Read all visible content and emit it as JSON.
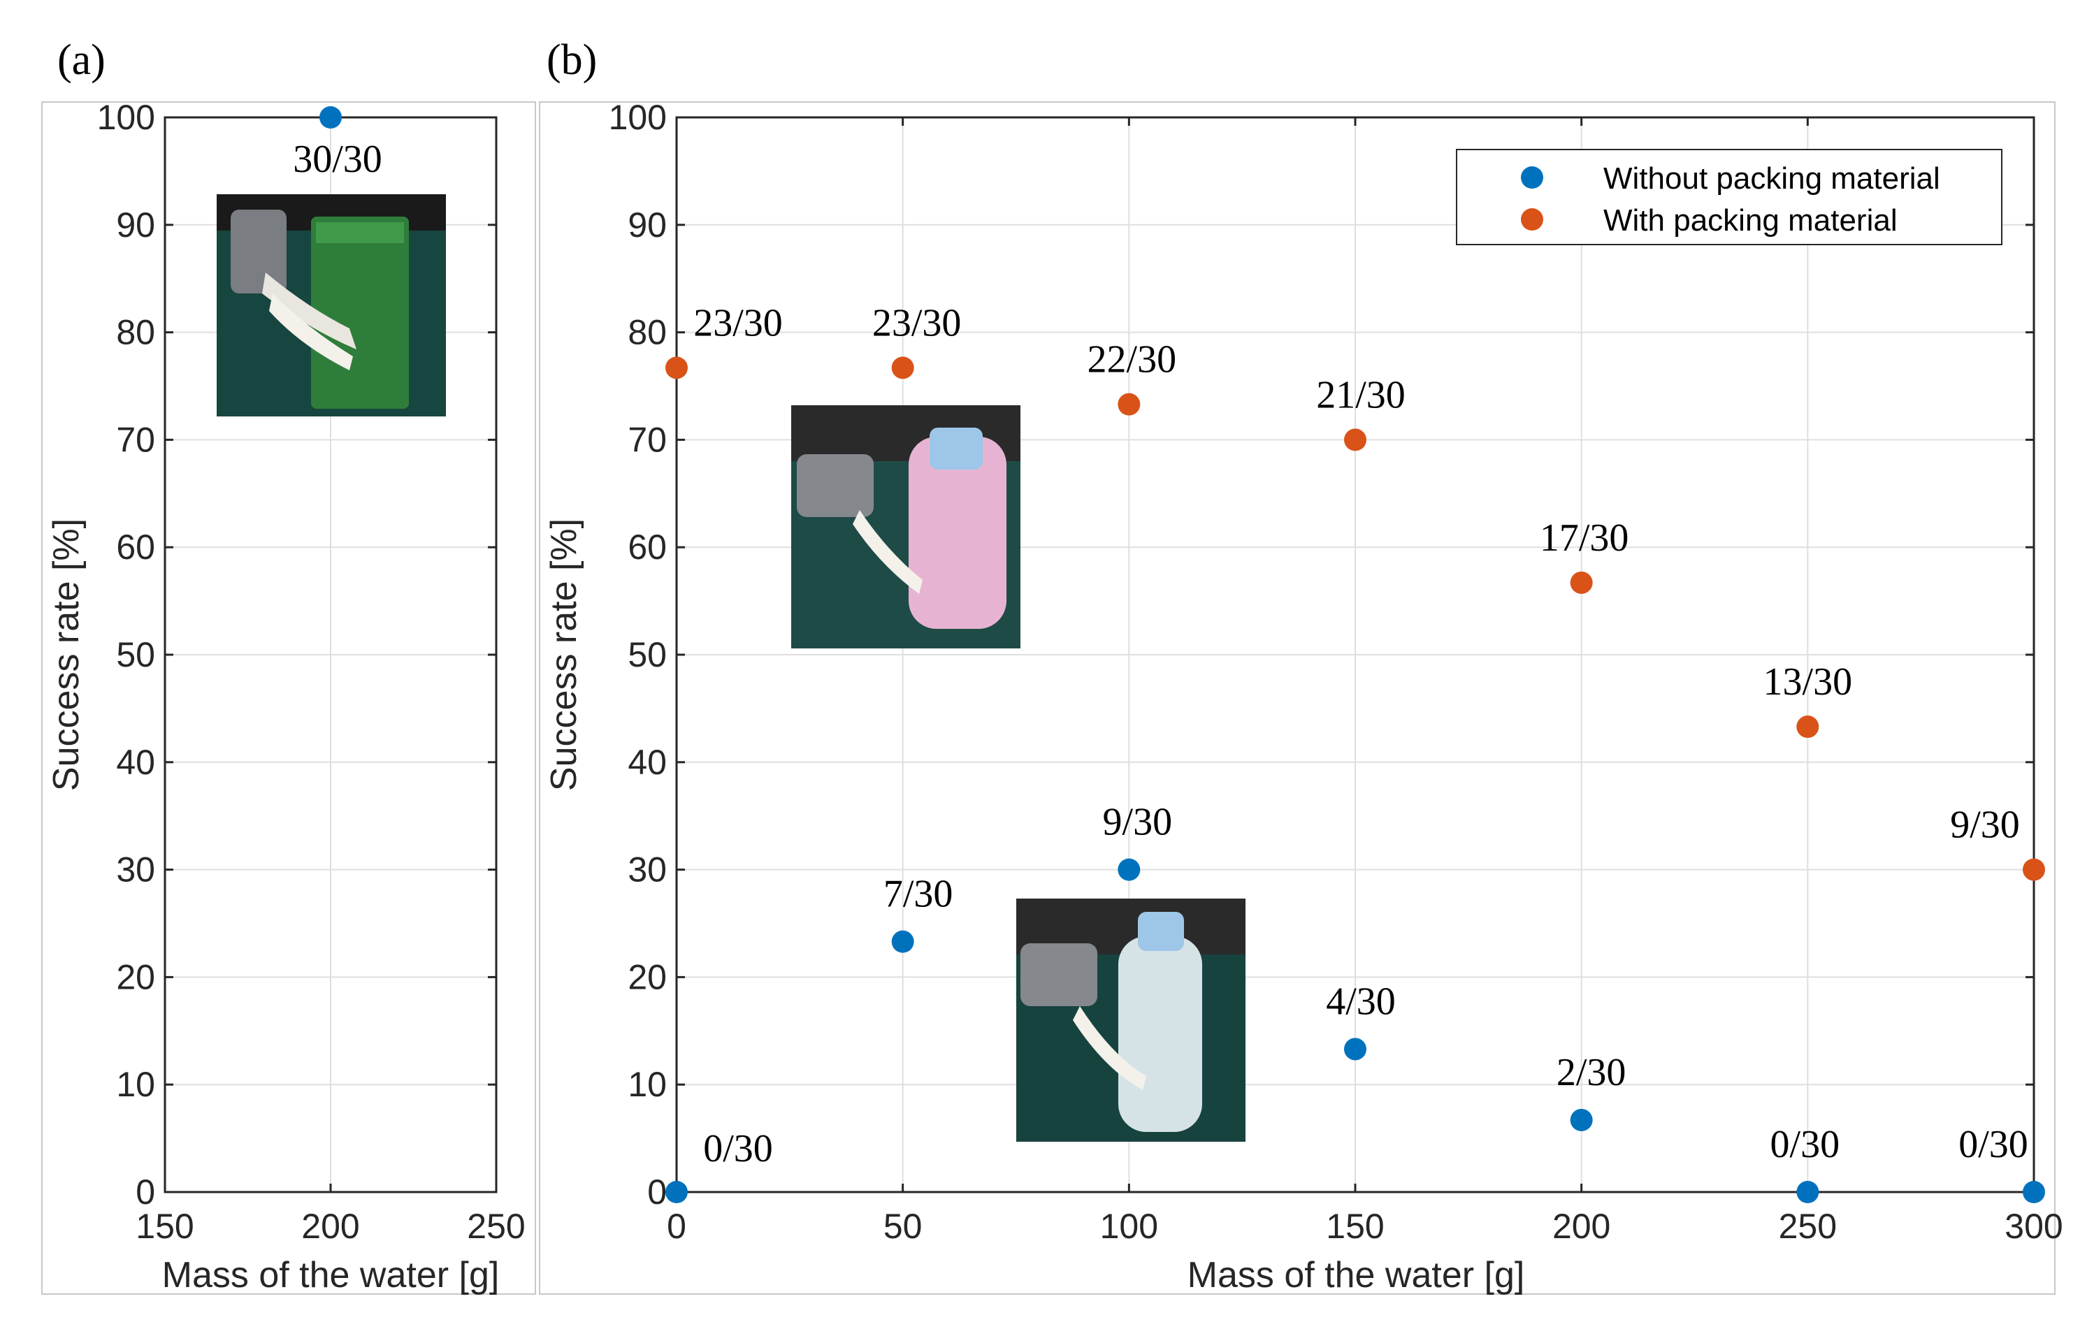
{
  "colors": {
    "without": "#0072BD",
    "with": "#D95319"
  },
  "photo_icons": [
    "gripper-holding-green-box-photo",
    "gripper-holding-bottle-with-packing-material-photo",
    "gripper-holding-plain-water-bottle-photo"
  ],
  "chart_data": [
    {
      "panel": "(a)",
      "type": "scatter",
      "xlabel": "Mass of the water [g]",
      "ylabel": "Success rate [%]",
      "xlim": [
        150,
        250
      ],
      "ylim": [
        0,
        100
      ],
      "xticks": [
        150,
        200,
        250
      ],
      "yticks": [
        0,
        10,
        20,
        30,
        40,
        50,
        60,
        70,
        80,
        90,
        100
      ],
      "grid": true,
      "series": [
        {
          "name": "Without packing material",
          "points": [
            {
              "x": 200,
              "y": 100,
              "label": "30/30"
            }
          ]
        }
      ]
    },
    {
      "panel": "(b)",
      "type": "scatter",
      "xlabel": "Mass of the water [g]",
      "ylabel": "Success rate [%]",
      "xlim": [
        0,
        300
      ],
      "ylim": [
        0,
        100
      ],
      "xticks": [
        0,
        50,
        100,
        150,
        200,
        250,
        300
      ],
      "yticks": [
        0,
        10,
        20,
        30,
        40,
        50,
        60,
        70,
        80,
        90,
        100
      ],
      "grid": true,
      "legend": "top-right",
      "series": [
        {
          "name": "Without packing material",
          "points": [
            {
              "x": 0,
              "y": 0,
              "label": "0/30"
            },
            {
              "x": 50,
              "y": 23.3,
              "label": "7/30"
            },
            {
              "x": 100,
              "y": 30,
              "label": "9/30"
            },
            {
              "x": 150,
              "y": 13.3,
              "label": "4/30"
            },
            {
              "x": 200,
              "y": 6.7,
              "label": "2/30"
            },
            {
              "x": 250,
              "y": 0,
              "label": "0/30"
            },
            {
              "x": 300,
              "y": 0,
              "label": "0/30"
            }
          ]
        },
        {
          "name": "With packing material",
          "points": [
            {
              "x": 0,
              "y": 76.7,
              "label": "23/30"
            },
            {
              "x": 50,
              "y": 76.7,
              "label": "23/30"
            },
            {
              "x": 100,
              "y": 73.3,
              "label": "22/30"
            },
            {
              "x": 150,
              "y": 70,
              "label": "21/30"
            },
            {
              "x": 200,
              "y": 56.7,
              "label": "17/30"
            },
            {
              "x": 250,
              "y": 43.3,
              "label": "13/30"
            },
            {
              "x": 300,
              "y": 30,
              "label": "9/30"
            }
          ]
        }
      ]
    }
  ]
}
